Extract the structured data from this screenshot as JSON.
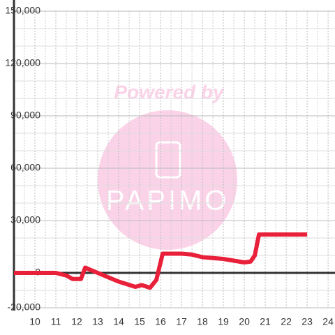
{
  "chart_data": {
    "type": "line",
    "watermark": [
      "Powered by",
      "PAPIMO"
    ],
    "x": [
      9,
      11,
      11.5,
      11.8,
      12.2,
      12.4,
      12.7,
      13,
      13.3,
      13.7,
      14,
      14.4,
      14.8,
      15.1,
      15.5,
      15.8,
      16.1,
      16.5,
      17,
      17.5,
      18,
      18.5,
      19,
      19.5,
      20,
      20.3,
      20.5,
      20.7,
      21,
      23
    ],
    "series": [
      {
        "color": "#e8203a",
        "values": [
          0,
          0,
          -1500,
          -3500,
          -3500,
          3000,
          1500,
          0,
          -1500,
          -3500,
          -5000,
          -6500,
          -8000,
          -7000,
          -8500,
          -4000,
          11000,
          11000,
          11000,
          10500,
          9000,
          8500,
          8000,
          7000,
          6000,
          6500,
          10000,
          22000,
          22000,
          22000
        ]
      }
    ],
    "xlim": [
      9,
      24.33
    ],
    "xticks": [
      10,
      11,
      12,
      13,
      14,
      15,
      16,
      17,
      18,
      19,
      20,
      21,
      22,
      23,
      24
    ],
    "ylim": [
      -20000,
      150000
    ],
    "yticks": [
      {
        "value": -20000,
        "label": "-20,000"
      },
      0,
      {
        "value": 30000,
        "label": "30,000"
      },
      {
        "value": 60000,
        "label": "60,000"
      },
      {
        "value": 90000,
        "label": "90,000"
      },
      {
        "value": 120000,
        "label": "120,000"
      },
      {
        "value": 150000,
        "label": "150,000"
      }
    ],
    "y_minor_ticks": [
      -10000,
      10000,
      20000,
      40000,
      50000,
      70000,
      80000,
      100000,
      110000,
      130000,
      140000
    ],
    "x_minor_ticks": [
      9.5,
      10.5,
      11.5,
      12.5,
      13.5,
      14.5,
      15.5,
      16.5,
      17.5,
      18.5,
      19.5,
      20.5,
      21.5,
      22.5,
      23.5
    ],
    "grid": true
  }
}
